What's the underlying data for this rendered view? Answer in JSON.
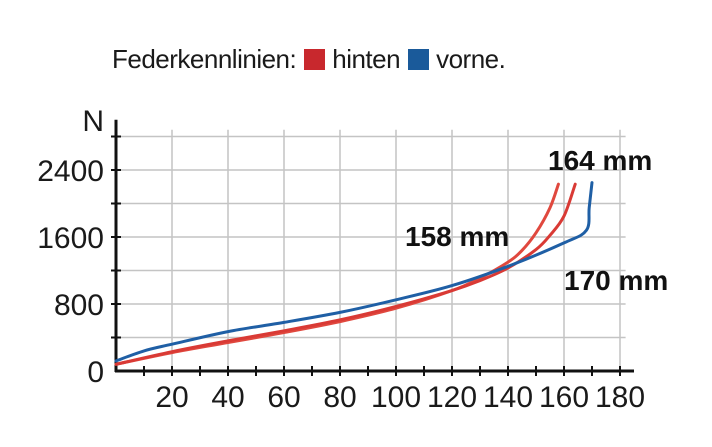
{
  "legend": {
    "title": "Federkennlinien:",
    "items": [
      {
        "label": "hinten",
        "color": "#c8282d"
      },
      {
        "label": "vorne.",
        "color": "#1a5a9a"
      }
    ]
  },
  "chart_data": {
    "type": "line",
    "title": "Federkennlinien:",
    "xlabel": "",
    "ylabel": "N",
    "xlim": [
      0,
      185
    ],
    "ylim": [
      0,
      3000
    ],
    "xticks": [
      20,
      40,
      60,
      80,
      100,
      120,
      140,
      160,
      180
    ],
    "yticks": [
      0,
      800,
      1600,
      2400
    ],
    "grid": true,
    "legend_position": "top",
    "series": [
      {
        "name": "hinten",
        "group": "hinten",
        "color": "#e0483e",
        "label": "158 mm",
        "x": [
          0,
          20,
          40,
          60,
          80,
          100,
          120,
          130,
          140,
          145,
          150,
          155,
          158
        ],
        "y": [
          80,
          220,
          340,
          460,
          590,
          750,
          960,
          1110,
          1300,
          1440,
          1650,
          1950,
          2230
        ]
      },
      {
        "name": "hinten",
        "group": "hinten",
        "color": "#d93a35",
        "label": "164 mm",
        "x": [
          0,
          20,
          40,
          60,
          80,
          100,
          120,
          130,
          140,
          150,
          155,
          160,
          164
        ],
        "y": [
          80,
          230,
          360,
          480,
          610,
          770,
          960,
          1080,
          1230,
          1450,
          1620,
          1850,
          2230
        ]
      },
      {
        "name": "vorne.",
        "group": "vorne",
        "color": "#1f5fa5",
        "label": "170 mm",
        "x": [
          0,
          10,
          20,
          40,
          60,
          80,
          100,
          120,
          140,
          160,
          168,
          169,
          170
        ],
        "y": [
          120,
          240,
          320,
          470,
          580,
          700,
          850,
          1020,
          1250,
          1530,
          1680,
          1950,
          2250
        ]
      }
    ],
    "annotations": [
      "158 mm",
      "164 mm",
      "170 mm"
    ]
  }
}
